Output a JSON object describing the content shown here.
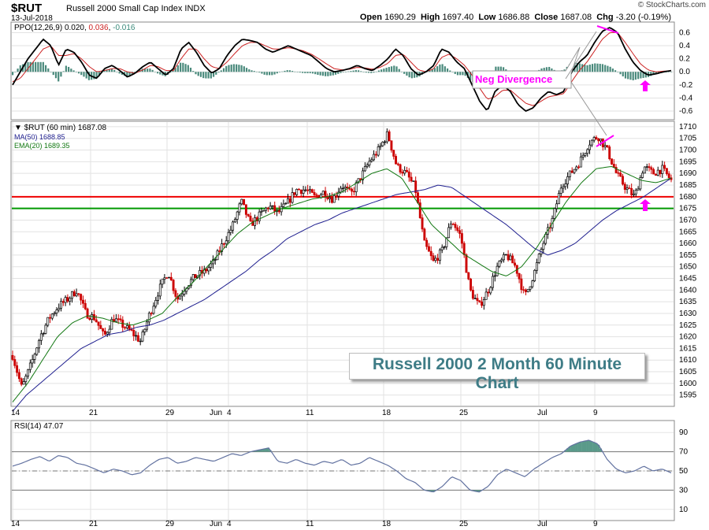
{
  "header": {
    "symbol": "$RUT",
    "name": "Russell 2000 Small Cap Index",
    "exchange": "INDX",
    "date": "13-Jul-2018",
    "open_label": "Open",
    "open": "1690.29",
    "high_label": "High",
    "high": "1697.40",
    "low_label": "Low",
    "low": "1686.88",
    "close_label": "Close",
    "close": "1687.08",
    "chg_label": "Chg",
    "chg": "-3.20 (-0.19%)",
    "brand": "© StockCharts.com"
  },
  "annotations": {
    "chart_title": "Russell 2000 2 Month 60 Minute Chart",
    "neg_divergence": "Neg Divergence"
  },
  "colors": {
    "price_up": "#000000",
    "price_down": "#cc0000",
    "ma50": "#1f1f8f",
    "ema20": "#117711",
    "resistance": "#ee0000",
    "support": "#009900",
    "ppo": "#000000",
    "ppo_signal": "#cc2222",
    "ppo_hist": "#4a8a7c",
    "rsi_line": "#6272a0",
    "rsi_fill": "#5a9a8a",
    "highlight": "#ff00ff"
  },
  "chart_data": [
    {
      "panel": "PPO",
      "type": "line",
      "legend": [
        "PPO(12,26,9)",
        "0.020",
        "0.036",
        "-0.016"
      ],
      "y_ticks": [
        "0.6",
        "0.4",
        "0.2",
        "0.0",
        "-0.2",
        "-0.4",
        "-0.6"
      ],
      "ylim": [
        -0.72,
        0.75
      ],
      "ppo": [
        -0.2,
        0.0,
        0.2,
        0.35,
        0.5,
        0.4,
        0.1,
        0.35,
        0.3,
        0.15,
        -0.05,
        -0.1,
        0.05,
        0.1,
        0.02,
        -0.08,
        -0.02,
        0.08,
        0.15,
        0.05,
        -0.05,
        0.05,
        0.35,
        0.45,
        0.3,
        0.1,
        -0.02,
        0.05,
        0.25,
        0.4,
        0.5,
        0.48,
        0.45,
        0.35,
        0.3,
        0.35,
        0.4,
        0.35,
        0.3,
        0.25,
        0.15,
        0.05,
        0.0,
        0.02,
        0.05,
        0.1,
        0.05,
        0.02,
        0.1,
        0.2,
        0.35,
        0.25,
        0.05,
        -0.05,
        0.0,
        0.1,
        0.35,
        0.3,
        0.15,
        0.05,
        -0.2,
        -0.45,
        -0.6,
        -0.3,
        -0.2,
        -0.3,
        -0.5,
        -0.6,
        -0.55,
        -0.4,
        -0.3,
        -0.35,
        -0.3,
        0.0,
        0.15,
        0.25,
        0.45,
        0.62,
        0.68,
        0.6,
        0.35,
        0.15,
        0.02,
        -0.05,
        -0.03,
        0.0,
        0.02
      ],
      "signal": [
        -0.15,
        -0.1,
        0.05,
        0.2,
        0.35,
        0.4,
        0.25,
        0.25,
        0.28,
        0.2,
        0.08,
        0.0,
        0.02,
        0.05,
        0.05,
        0.0,
        -0.02,
        0.03,
        0.1,
        0.08,
        0.02,
        0.02,
        0.2,
        0.35,
        0.35,
        0.2,
        0.08,
        0.05,
        0.15,
        0.28,
        0.4,
        0.45,
        0.45,
        0.4,
        0.35,
        0.35,
        0.37,
        0.35,
        0.32,
        0.27,
        0.2,
        0.12,
        0.05,
        0.03,
        0.04,
        0.07,
        0.06,
        0.04,
        0.07,
        0.13,
        0.25,
        0.27,
        0.15,
        0.03,
        0.0,
        0.05,
        0.22,
        0.27,
        0.2,
        0.1,
        -0.05,
        -0.25,
        -0.42,
        -0.38,
        -0.28,
        -0.28,
        -0.38,
        -0.48,
        -0.52,
        -0.45,
        -0.38,
        -0.36,
        -0.33,
        -0.15,
        0.02,
        0.15,
        0.32,
        0.5,
        0.6,
        0.6,
        0.45,
        0.28,
        0.12,
        0.03,
        0.0,
        0.01,
        0.02
      ]
    },
    {
      "panel": "Price",
      "type": "candlestick",
      "legend": [
        "$RUT (60 min) 1687.08",
        "MA(50) 1688.85",
        "EMA(20) 1689.35"
      ],
      "y_ticks": [
        "1710",
        "1705",
        "1700",
        "1695",
        "1690",
        "1685",
        "1680",
        "1675",
        "1670",
        "1665",
        "1660",
        "1655",
        "1650",
        "1645",
        "1640",
        "1635",
        "1630",
        "1625",
        "1620",
        "1615",
        "1610",
        "1605",
        "1600",
        "1595"
      ],
      "ylim": [
        1590.5,
        1712
      ],
      "x_ticks": [
        "14",
        "21",
        "29",
        "Jun",
        "4",
        "11",
        "18",
        "25",
        "Jul",
        "9"
      ],
      "close_path": [
        1612,
        1598,
        1608,
        1620,
        1628,
        1633,
        1636,
        1640,
        1630,
        1628,
        1620,
        1628,
        1625,
        1622,
        1618,
        1630,
        1640,
        1648,
        1636,
        1642,
        1646,
        1648,
        1652,
        1660,
        1667,
        1678,
        1668,
        1672,
        1676,
        1673,
        1677,
        1683,
        1683,
        1680,
        1682,
        1679,
        1685,
        1681,
        1688,
        1695,
        1700,
        1707,
        1693,
        1690,
        1684,
        1660,
        1652,
        1657,
        1670,
        1663,
        1640,
        1633,
        1640,
        1650,
        1655,
        1650,
        1637,
        1647,
        1660,
        1670,
        1685,
        1690,
        1695,
        1703,
        1706,
        1700,
        1690,
        1684,
        1680,
        1693,
        1690,
        1692,
        1687
      ],
      "resistance_level": 1680,
      "support_level": 1675,
      "ma50": [
        1588,
        1595,
        1600,
        1605,
        1610,
        1615,
        1618,
        1621,
        1622,
        1624,
        1625,
        1627,
        1630,
        1633,
        1636,
        1640,
        1644,
        1648,
        1653,
        1657,
        1662,
        1665,
        1668,
        1670,
        1673,
        1675,
        1677,
        1679,
        1681,
        1682,
        1683,
        1685,
        1684,
        1680,
        1676,
        1672,
        1668,
        1663,
        1658,
        1655,
        1657,
        1660,
        1665,
        1670,
        1674,
        1677,
        1680,
        1684,
        1688
      ],
      "ema20": [
        1592,
        1600,
        1610,
        1620,
        1626,
        1629,
        1628,
        1626,
        1625,
        1627,
        1630,
        1637,
        1643,
        1650,
        1657,
        1664,
        1669,
        1672,
        1675,
        1677,
        1679,
        1680,
        1682,
        1686,
        1690,
        1692,
        1688,
        1678,
        1668,
        1662,
        1656,
        1652,
        1648,
        1646,
        1650,
        1658,
        1668,
        1678,
        1686,
        1692,
        1693,
        1690,
        1687,
        1686,
        1688
      ]
    },
    {
      "panel": "RSI",
      "type": "line",
      "legend": [
        "RSI(14)",
        "47.07"
      ],
      "y_ticks": [
        "90",
        "70",
        "50",
        "30",
        "10"
      ],
      "ylim": [
        0,
        100
      ],
      "overbought": 70,
      "oversold": 30,
      "midline": 50,
      "x_ticks": [
        "14",
        "21",
        "29",
        "Jun",
        "4",
        "11",
        "18",
        "25",
        "Jul",
        "9"
      ],
      "values": [
        55,
        58,
        62,
        65,
        60,
        66,
        64,
        58,
        56,
        52,
        48,
        52,
        50,
        46,
        48,
        56,
        62,
        64,
        58,
        60,
        64,
        62,
        60,
        64,
        68,
        66,
        70,
        72,
        74,
        60,
        58,
        62,
        58,
        56,
        60,
        58,
        62,
        56,
        58,
        64,
        60,
        56,
        50,
        42,
        38,
        30,
        28,
        34,
        44,
        40,
        30,
        28,
        34,
        46,
        52,
        48,
        44,
        52,
        58,
        64,
        68,
        76,
        80,
        82,
        78,
        62,
        52,
        48,
        50,
        55,
        50,
        52,
        48
      ]
    }
  ]
}
